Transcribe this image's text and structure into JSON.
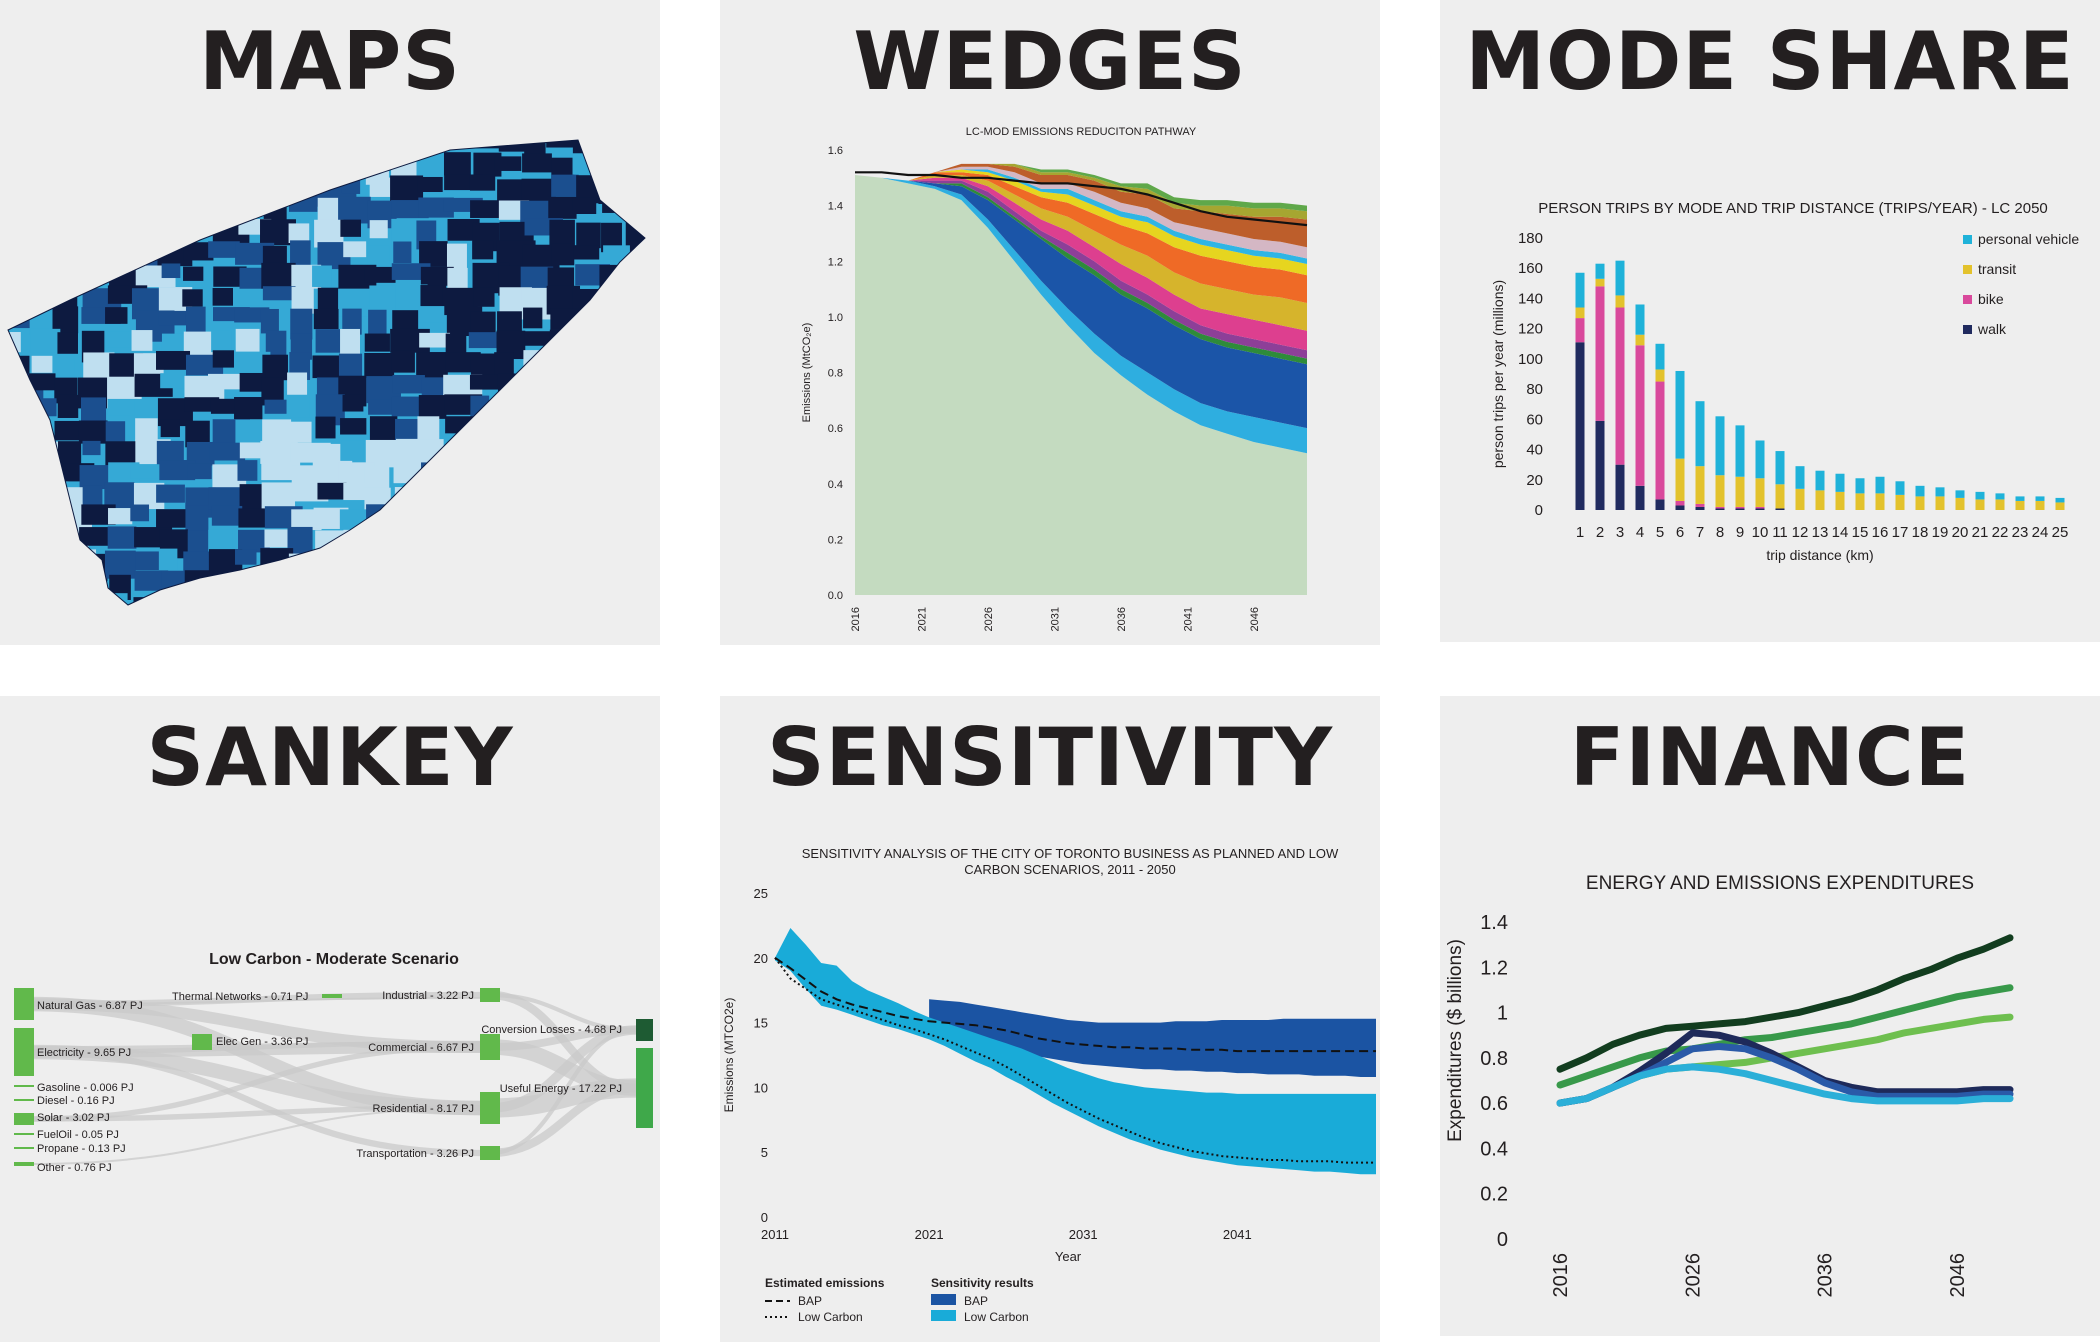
{
  "panels": {
    "maps": {
      "title": "MAPS"
    },
    "wedges": {
      "title": "WEDGES"
    },
    "mode_share": {
      "title": "MODE SHARE"
    },
    "sankey": {
      "title": "SANKEY"
    },
    "sensitivity": {
      "title": "SENSITIVITY"
    },
    "finance": {
      "title": "FINANCE"
    }
  },
  "colors": {
    "panel_bg": "#eeeeee",
    "personal_vehicle": "#1fb2d9",
    "transit": "#e3c22c",
    "bike": "#d9499c",
    "walk": "#202a5e",
    "bap_band": "#1b54a3",
    "lowcarbon_band": "#19abd8",
    "map_dark": "#0d1a40",
    "map_mid": "#1b4f8f",
    "map_light": "#35a9d6",
    "map_pale": "#bfdff0"
  },
  "chart_data": [
    {
      "id": "wedges",
      "type": "area",
      "title": "LC-MOD EMISSIONS REDUCITON PATHWAY",
      "ylabel": "Emissions (MtCO₂e)",
      "xlabel": "",
      "ylim": [
        0,
        1.6
      ],
      "yticks": [
        "0.0",
        "0.2",
        "0.4",
        "0.6",
        "0.8",
        "1.0",
        "1.2",
        "1.4",
        "1.6"
      ],
      "xticks": [
        "2016",
        "2021",
        "2026",
        "2031",
        "2036",
        "2041",
        "2046"
      ],
      "x": [
        2016,
        2018,
        2020,
        2022,
        2024,
        2026,
        2028,
        2030,
        2032,
        2034,
        2036,
        2038,
        2040,
        2042,
        2044,
        2046,
        2048,
        2050
      ],
      "baseline": [
        1.52,
        1.52,
        1.51,
        1.51,
        1.5,
        1.5,
        1.49,
        1.48,
        1.48,
        1.47,
        1.46,
        1.44,
        1.41,
        1.38,
        1.36,
        1.35,
        1.34,
        1.33
      ],
      "series": [
        {
          "color": "#c4dbc0",
          "values": [
            1.51,
            1.5,
            1.48,
            1.46,
            1.42,
            1.32,
            1.2,
            1.08,
            0.97,
            0.87,
            0.79,
            0.72,
            0.66,
            0.61,
            0.58,
            0.55,
            0.53,
            0.51
          ]
        },
        {
          "color": "#2eaee0",
          "values": [
            0.0,
            0.0,
            0.01,
            0.01,
            0.02,
            0.03,
            0.04,
            0.05,
            0.06,
            0.07,
            0.07,
            0.08,
            0.08,
            0.08,
            0.08,
            0.09,
            0.09,
            0.09
          ]
        },
        {
          "color": "#1b55a8",
          "values": [
            0.0,
            0.0,
            0.0,
            0.01,
            0.03,
            0.07,
            0.11,
            0.15,
            0.18,
            0.21,
            0.22,
            0.23,
            0.23,
            0.23,
            0.23,
            0.23,
            0.23,
            0.23
          ]
        },
        {
          "color": "#2e8b3a",
          "values": [
            0.0,
            0.0,
            0.0,
            0.0,
            0.01,
            0.01,
            0.01,
            0.01,
            0.02,
            0.02,
            0.02,
            0.02,
            0.02,
            0.02,
            0.02,
            0.02,
            0.02,
            0.02
          ]
        },
        {
          "color": "#8d3f98",
          "values": [
            0.0,
            0.0,
            0.0,
            0.01,
            0.01,
            0.02,
            0.02,
            0.02,
            0.03,
            0.03,
            0.03,
            0.03,
            0.03,
            0.03,
            0.03,
            0.03,
            0.03,
            0.03
          ]
        },
        {
          "color": "#dd3f8f",
          "values": [
            0.0,
            0.0,
            0.0,
            0.01,
            0.01,
            0.02,
            0.03,
            0.04,
            0.05,
            0.05,
            0.06,
            0.06,
            0.06,
            0.06,
            0.07,
            0.07,
            0.07,
            0.07
          ]
        },
        {
          "color": "#d6b42c",
          "values": [
            0.0,
            0.0,
            0.0,
            0.01,
            0.01,
            0.02,
            0.03,
            0.04,
            0.05,
            0.06,
            0.07,
            0.08,
            0.08,
            0.09,
            0.09,
            0.09,
            0.1,
            0.1
          ]
        },
        {
          "color": "#ef6a26",
          "values": [
            0.0,
            0.0,
            0.0,
            0.01,
            0.01,
            0.02,
            0.03,
            0.04,
            0.05,
            0.06,
            0.07,
            0.08,
            0.09,
            0.1,
            0.1,
            0.1,
            0.1,
            0.1
          ]
        },
        {
          "color": "#e6d51f",
          "values": [
            0.0,
            0.0,
            0.0,
            0.0,
            0.01,
            0.01,
            0.02,
            0.02,
            0.03,
            0.03,
            0.03,
            0.04,
            0.04,
            0.04,
            0.04,
            0.04,
            0.04,
            0.04
          ]
        },
        {
          "color": "#2fb5e4",
          "values": [
            0.0,
            0.0,
            0.0,
            0.0,
            0.0,
            0.01,
            0.01,
            0.01,
            0.02,
            0.02,
            0.02,
            0.02,
            0.02,
            0.02,
            0.02,
            0.02,
            0.02,
            0.02
          ]
        },
        {
          "color": "#d4b7c4",
          "values": [
            0.0,
            0.0,
            0.0,
            0.0,
            0.01,
            0.01,
            0.02,
            0.02,
            0.02,
            0.03,
            0.03,
            0.03,
            0.03,
            0.04,
            0.04,
            0.04,
            0.04,
            0.04
          ]
        },
        {
          "color": "#bd5e2b",
          "values": [
            0.0,
            0.0,
            0.0,
            0.0,
            0.01,
            0.01,
            0.02,
            0.03,
            0.03,
            0.04,
            0.04,
            0.05,
            0.05,
            0.06,
            0.07,
            0.08,
            0.09,
            0.1
          ]
        },
        {
          "color": "#a6a631",
          "values": [
            0.0,
            0.0,
            0.0,
            0.0,
            0.0,
            0.0,
            0.01,
            0.01,
            0.01,
            0.01,
            0.02,
            0.02,
            0.02,
            0.02,
            0.03,
            0.03,
            0.03,
            0.03
          ]
        },
        {
          "color": "#5fa84a",
          "values": [
            0.0,
            0.0,
            0.0,
            0.0,
            0.0,
            0.0,
            0.0,
            0.01,
            0.01,
            0.01,
            0.01,
            0.02,
            0.02,
            0.02,
            0.02,
            0.02,
            0.02,
            0.02
          ]
        }
      ]
    },
    {
      "id": "mode_share",
      "type": "bar",
      "title": "PERSON TRIPS BY MODE AND TRIP DISTANCE (TRIPS/YEAR) - LC 2050",
      "xlabel": "trip distance (km)",
      "ylabel": "person trips per year (millions)",
      "ylim": [
        0,
        180
      ],
      "yticks": [
        0,
        20,
        40,
        60,
        80,
        100,
        120,
        140,
        160,
        180
      ],
      "categories": [
        "1",
        "2",
        "3",
        "4",
        "5",
        "6",
        "7",
        "8",
        "9",
        "10",
        "11",
        "12",
        "13",
        "14",
        "15",
        "16",
        "17",
        "18",
        "19",
        "20",
        "21",
        "22",
        "23",
        "24",
        "25"
      ],
      "legend": [
        "personal vehicle",
        "transit",
        "bike",
        "walk"
      ],
      "series": [
        {
          "name": "walk",
          "values": [
            111,
            59,
            30,
            16,
            7,
            3,
            2,
            1,
            1,
            1,
            1,
            0,
            0,
            0,
            0,
            0,
            0,
            0,
            0,
            0,
            0,
            0,
            0,
            0,
            0
          ]
        },
        {
          "name": "bike",
          "values": [
            16,
            89,
            104,
            93,
            78,
            3,
            2,
            1,
            1,
            1,
            0,
            0,
            0,
            0,
            0,
            0,
            0,
            0,
            0,
            0,
            0,
            0,
            0,
            0,
            0
          ]
        },
        {
          "name": "transit",
          "values": [
            7,
            5,
            8,
            7,
            8,
            28,
            25,
            21,
            20,
            19,
            16,
            14,
            13,
            12,
            11,
            11,
            10,
            9,
            9,
            8,
            7,
            7,
            6,
            6,
            5
          ]
        },
        {
          "name": "personal vehicle",
          "values": [
            23,
            10,
            23,
            20,
            17,
            58,
            43,
            39,
            34,
            25,
            22,
            15,
            13,
            12,
            10,
            11,
            9,
            7,
            6,
            5,
            5,
            4,
            3,
            3,
            3
          ]
        }
      ]
    },
    {
      "id": "sankey",
      "type": "table",
      "title": "Low Carbon - Moderate Scenario",
      "sources": [
        "Natural Gas - 6.87 PJ",
        "Electricity - 9.65 PJ",
        "Gasoline - 0.006 PJ",
        "Diesel - 0.16 PJ",
        "Solar - 3.02 PJ",
        "FuelOil - 0.05 PJ",
        "Propane - 0.13 PJ",
        "Other - 0.76 PJ"
      ],
      "middle": [
        "Thermal Networks - 0.71 PJ",
        "Elec Gen - 3.36 PJ"
      ],
      "sectors": [
        "Industrial - 3.22 PJ",
        "Commercial - 6.67 PJ",
        "Residential - 8.17 PJ",
        "Transportation - 3.26 PJ"
      ],
      "outputs": [
        "Conversion Losses - 4.68 PJ",
        "Useful Energy - 17.22 PJ"
      ]
    },
    {
      "id": "sensitivity",
      "type": "line",
      "title": "SENSITIVITY ANALYSIS OF THE CITY OF TORONTO BUSINESS AS PLANNED AND LOW CARBON SCENARIOS, 2011 - 2050",
      "xlabel": "Year",
      "ylabel": "Emissions (MTCO2e)",
      "ylim": [
        0,
        25
      ],
      "xlim": [
        2011,
        2050
      ],
      "yticks": [
        0,
        5,
        10,
        15,
        20,
        25
      ],
      "xticks": [
        2011,
        2021,
        2031,
        2041
      ],
      "legend_estimated_title": "Estimated emissions",
      "legend_sensitivity_title": "Sensitivity results",
      "legend_bap": "BAP",
      "legend_lowcarbon": "Low Carbon",
      "x": [
        2011,
        2012,
        2013,
        2014,
        2015,
        2016,
        2017,
        2018,
        2019,
        2020,
        2021,
        2022,
        2023,
        2024,
        2025,
        2026,
        2027,
        2028,
        2029,
        2030,
        2031,
        2032,
        2033,
        2034,
        2035,
        2036,
        2037,
        2038,
        2039,
        2040,
        2041,
        2042,
        2043,
        2044,
        2045,
        2046,
        2047,
        2048,
        2049,
        2050
      ],
      "bap_upper": [
        null,
        null,
        null,
        null,
        null,
        null,
        null,
        null,
        null,
        null,
        16.8,
        16.7,
        16.6,
        16.4,
        16.2,
        16.0,
        15.8,
        15.6,
        15.4,
        15.2,
        15.1,
        15.0,
        15.0,
        15.0,
        15.0,
        15.0,
        15.1,
        15.1,
        15.1,
        15.2,
        15.2,
        15.2,
        15.2,
        15.3,
        15.3,
        15.3,
        15.3,
        15.3,
        15.3,
        15.3
      ],
      "bap_lower": [
        null,
        null,
        null,
        null,
        null,
        null,
        null,
        null,
        null,
        null,
        14.8,
        14.5,
        14.2,
        13.8,
        13.4,
        13.0,
        12.7,
        12.4,
        12.2,
        12.0,
        11.8,
        11.7,
        11.6,
        11.5,
        11.4,
        11.4,
        11.3,
        11.3,
        11.2,
        11.2,
        11.1,
        11.1,
        11.0,
        11.0,
        11.0,
        10.9,
        10.9,
        10.9,
        10.8,
        10.8
      ],
      "lc_upper": [
        20.0,
        22.3,
        21.0,
        19.6,
        19.4,
        18.2,
        17.5,
        17.0,
        16.5,
        15.9,
        15.4,
        15.0,
        14.6,
        14.2,
        13.8,
        13.4,
        13.0,
        12.5,
        12.0,
        11.5,
        11.1,
        10.7,
        10.4,
        10.2,
        10.0,
        9.9,
        9.8,
        9.7,
        9.6,
        9.6,
        9.5,
        9.5,
        9.5,
        9.5,
        9.5,
        9.5,
        9.5,
        9.5,
        9.5,
        9.5
      ],
      "lc_lower": [
        19.8,
        19.0,
        17.6,
        16.3,
        16.0,
        15.6,
        15.2,
        14.8,
        14.5,
        14.1,
        13.7,
        13.2,
        12.6,
        12.0,
        11.5,
        10.8,
        10.2,
        9.5,
        8.8,
        8.2,
        7.6,
        7.0,
        6.5,
        6.0,
        5.6,
        5.2,
        4.9,
        4.6,
        4.4,
        4.2,
        4.0,
        3.9,
        3.8,
        3.7,
        3.6,
        3.5,
        3.5,
        3.4,
        3.3,
        3.3
      ],
      "series": [
        {
          "name": "BAP",
          "style": "dashed",
          "values": [
            20.0,
            19.2,
            18.3,
            17.4,
            16.8,
            16.4,
            16.1,
            15.8,
            15.5,
            15.3,
            15.1,
            15.0,
            14.9,
            14.8,
            14.6,
            14.4,
            14.1,
            13.8,
            13.6,
            13.4,
            13.3,
            13.2,
            13.1,
            13.1,
            13.0,
            13.0,
            13.0,
            12.9,
            12.9,
            12.9,
            12.8,
            12.8,
            12.8,
            12.8,
            12.8,
            12.8,
            12.8,
            12.8,
            12.8,
            12.8
          ]
        },
        {
          "name": "Low Carbon",
          "style": "dotted",
          "values": [
            20.0,
            18.4,
            17.6,
            16.8,
            16.4,
            16.0,
            15.6,
            15.2,
            14.8,
            14.5,
            14.1,
            13.7,
            13.2,
            12.7,
            12.2,
            11.6,
            10.9,
            10.2,
            9.5,
            8.8,
            8.2,
            7.6,
            7.1,
            6.6,
            6.1,
            5.7,
            5.4,
            5.1,
            4.9,
            4.7,
            4.6,
            4.5,
            4.4,
            4.4,
            4.3,
            4.3,
            4.3,
            4.2,
            4.2,
            4.2
          ]
        }
      ]
    },
    {
      "id": "finance",
      "type": "line",
      "title": "ENERGY AND EMISSIONS EXPENDITURES",
      "ylabel": "Expenditures ($ billions)",
      "xlabel": "",
      "ylim": [
        0,
        1.4
      ],
      "xlim": [
        2016,
        2050
      ],
      "yticks": [
        "0",
        "0.2",
        "0.4",
        "0.6",
        "0.8",
        "1",
        "1.2",
        "1.4"
      ],
      "xticks": [
        "2016",
        "2026",
        "2036",
        "2046"
      ],
      "x": [
        2016,
        2018,
        2020,
        2022,
        2024,
        2026,
        2028,
        2030,
        2032,
        2034,
        2036,
        2038,
        2040,
        2042,
        2044,
        2046,
        2048,
        2050
      ],
      "series": [
        {
          "color": "#123d1f",
          "values": [
            0.75,
            0.8,
            0.86,
            0.9,
            0.93,
            0.94,
            0.95,
            0.96,
            0.98,
            1.0,
            1.03,
            1.06,
            1.1,
            1.15,
            1.19,
            1.24,
            1.28,
            1.33
          ]
        },
        {
          "color": "#38994a",
          "values": [
            0.68,
            0.72,
            0.76,
            0.8,
            0.83,
            0.84,
            0.86,
            0.88,
            0.89,
            0.91,
            0.93,
            0.95,
            0.98,
            1.01,
            1.04,
            1.07,
            1.09,
            1.11
          ]
        },
        {
          "color": "#6ebf4f",
          "values": [
            0.6,
            0.62,
            0.67,
            0.72,
            0.75,
            0.76,
            0.77,
            0.78,
            0.8,
            0.82,
            0.84,
            0.86,
            0.88,
            0.91,
            0.93,
            0.95,
            0.97,
            0.98
          ]
        },
        {
          "color": "#1e2a5a",
          "values": [
            0.6,
            0.62,
            0.67,
            0.74,
            0.82,
            0.91,
            0.9,
            0.87,
            0.82,
            0.76,
            0.7,
            0.67,
            0.65,
            0.65,
            0.65,
            0.65,
            0.66,
            0.66
          ]
        },
        {
          "color": "#2a5aa8",
          "values": [
            0.6,
            0.62,
            0.67,
            0.72,
            0.78,
            0.84,
            0.85,
            0.84,
            0.8,
            0.75,
            0.69,
            0.65,
            0.63,
            0.63,
            0.63,
            0.63,
            0.64,
            0.64
          ]
        },
        {
          "color": "#2bafd8",
          "values": [
            0.6,
            0.62,
            0.67,
            0.72,
            0.75,
            0.76,
            0.75,
            0.73,
            0.7,
            0.67,
            0.64,
            0.62,
            0.61,
            0.61,
            0.61,
            0.61,
            0.62,
            0.62
          ]
        }
      ]
    }
  ]
}
